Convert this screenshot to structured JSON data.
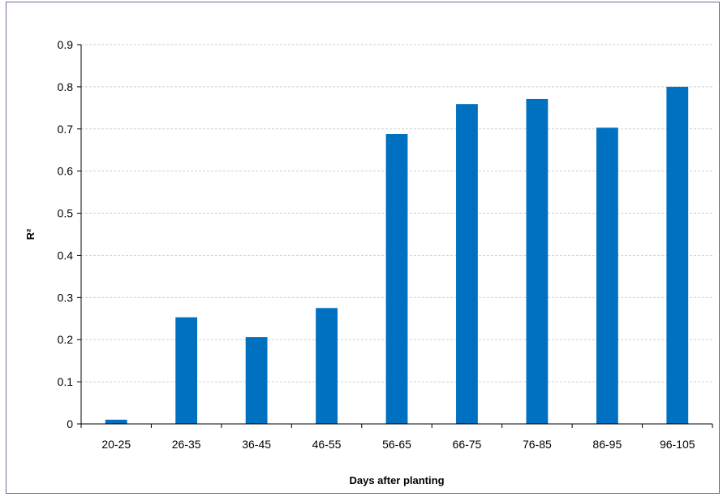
{
  "chart_data": {
    "type": "bar",
    "categories": [
      "20-25",
      "26-35",
      "36-45",
      "46-55",
      "56-65",
      "66-75",
      "76-85",
      "86-95",
      "96-105"
    ],
    "values": [
      0.01,
      0.253,
      0.206,
      0.275,
      0.688,
      0.759,
      0.771,
      0.703,
      0.8
    ],
    "xlabel": "Days after planting",
    "ylabel": "R²",
    "ylim": [
      0,
      0.9
    ],
    "yticks": [
      "0",
      "0.1",
      "0.2",
      "0.3",
      "0.4",
      "0.5",
      "0.6",
      "0.7",
      "0.8",
      "0.9"
    ],
    "grid": true,
    "bar_color": "#0070c0",
    "gridline_color": "#d0d0d0",
    "border_color": "#7c5fa0"
  }
}
